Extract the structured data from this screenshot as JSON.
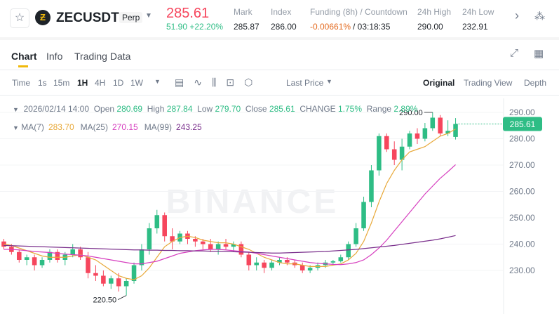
{
  "header": {
    "symbol": "ZECUSDT",
    "contract": "Perp",
    "price": "285.61",
    "change": "51.90 +22.20%",
    "stats": [
      {
        "label": "Mark",
        "value": "285.87"
      },
      {
        "label": "Index",
        "value": "286.00"
      },
      {
        "label": "Funding (8h) / Countdown",
        "value": "-0.00661%",
        "extra": "/ 03:18:35"
      },
      {
        "label": "24h High",
        "value": "290.00"
      },
      {
        "label": "24h Low",
        "value": "232.91"
      }
    ]
  },
  "tabs": [
    "Chart",
    "Info",
    "Trading Data"
  ],
  "toolbar": {
    "intervals": [
      "Time",
      "1s",
      "15m",
      "1H",
      "4H",
      "1D",
      "1W"
    ],
    "price_type": "Last Price",
    "views": [
      "Original",
      "Trading View",
      "Depth"
    ]
  },
  "info": {
    "date": "2026/02/14 14:00",
    "fields": [
      {
        "label": "Open",
        "value": "280.69"
      },
      {
        "label": "High",
        "value": "287.84"
      },
      {
        "label": "Low",
        "value": "279.70"
      },
      {
        "label": "Close",
        "value": "285.61"
      },
      {
        "label": "CHANGE",
        "value": "1.75%"
      },
      {
        "label": "Range",
        "value": "2.89%"
      }
    ]
  },
  "chart_data": {
    "type": "candlestick",
    "watermark": "BINANCE",
    "up_color": "#2ebd85",
    "down_color": "#f6465d",
    "open": [
      241,
      239,
      237,
      234,
      235,
      232,
      234,
      237,
      234,
      236,
      238,
      235,
      229,
      228,
      225,
      227,
      224,
      226,
      232,
      238,
      246,
      251,
      243,
      241,
      244,
      242,
      241,
      240,
      238,
      240,
      239,
      240,
      236,
      232,
      233,
      231,
      233,
      234,
      233,
      232,
      230,
      231,
      232,
      233,
      233.5,
      235,
      240,
      246,
      256,
      268,
      281,
      276,
      272,
      277,
      282,
      280,
      284,
      288,
      282,
      280.69
    ],
    "high": [
      242,
      240,
      238,
      236,
      236,
      235,
      238,
      238,
      237,
      240,
      239,
      237,
      232,
      230,
      228,
      229,
      227,
      233,
      240,
      248,
      253,
      252,
      246,
      245,
      245,
      243,
      242,
      242,
      241,
      242,
      241,
      241,
      237,
      235,
      234,
      234,
      235,
      235,
      234,
      233,
      232,
      233,
      234,
      234,
      236,
      241,
      248,
      258,
      270,
      282,
      282,
      279,
      280,
      283,
      284,
      286,
      290,
      289,
      287,
      287.84
    ],
    "low": [
      238,
      236,
      233,
      232,
      230,
      231,
      233,
      233,
      232,
      235,
      234,
      227,
      226,
      224,
      223,
      222,
      220.5,
      225,
      230,
      236,
      244,
      241,
      238,
      240,
      240,
      239,
      238,
      237,
      236,
      238,
      237,
      235,
      230,
      230,
      229,
      230,
      232,
      232,
      231,
      229,
      229,
      230,
      231,
      232,
      233,
      234,
      239,
      245,
      254,
      266,
      275,
      270,
      268,
      276,
      278,
      279,
      283,
      281,
      281,
      279.7
    ],
    "close": [
      239,
      237,
      234,
      235,
      232,
      234,
      237,
      234,
      236,
      238,
      235,
      229,
      228,
      225,
      227,
      224,
      226,
      232,
      238,
      246,
      251,
      243,
      241,
      244,
      242,
      241,
      240,
      238,
      240,
      239,
      240,
      236,
      232,
      233,
      231,
      233,
      234,
      233,
      232,
      230,
      231,
      232,
      233,
      233.5,
      235,
      240,
      246,
      256,
      268,
      281,
      276,
      272,
      277,
      282,
      280,
      284,
      288,
      282,
      283,
      285.61
    ],
    "series": [
      {
        "name": "MA(7)",
        "color": "#e8a93a",
        "last_label": "283.70",
        "values": [
          240,
          239.5,
          238.5,
          237.5,
          236.5,
          235.5,
          235,
          235,
          235,
          235.5,
          236,
          235,
          234,
          232,
          230,
          228,
          227,
          226.5,
          228,
          231,
          235,
          239,
          241,
          242.5,
          243,
          242.5,
          241.5,
          241,
          240.5,
          240.5,
          240,
          239,
          238,
          236.5,
          235,
          234,
          233,
          232.5,
          232.5,
          232,
          231.5,
          231.5,
          231.5,
          232,
          232.5,
          234,
          236.5,
          241,
          248,
          256,
          263,
          268,
          272,
          275,
          276,
          277,
          279,
          281,
          282,
          283.7
        ]
      },
      {
        "name": "MA(25)",
        "color": "#d63fbf",
        "last_label": "270.15",
        "values": [
          238,
          238,
          237.8,
          237.5,
          237.2,
          237,
          236.8,
          236.5,
          236.2,
          236,
          235.8,
          235.5,
          235,
          234.5,
          234,
          233.5,
          233,
          232.5,
          232.5,
          233,
          233.5,
          234.5,
          235.5,
          236.5,
          237,
          237.5,
          237.8,
          238,
          238,
          237.8,
          237.5,
          237.2,
          237,
          236.5,
          236,
          235.5,
          235,
          234.5,
          234,
          233.5,
          233,
          232.7,
          232.5,
          232.3,
          232.2,
          232.5,
          233,
          234,
          236,
          238.5,
          241.5,
          245,
          248.5,
          252,
          255.5,
          259,
          262,
          265,
          267.5,
          270.15
        ]
      },
      {
        "name": "MA(99)",
        "color": "#7a2f8c",
        "last_label": "243.25",
        "values": [
          239.5,
          239.4,
          239.3,
          239.2,
          239.1,
          239.0,
          238.9,
          238.8,
          238.7,
          238.6,
          238.5,
          238.4,
          238.3,
          238.2,
          238.1,
          238.0,
          237.9,
          237.8,
          237.8,
          237.7,
          237.7,
          237.6,
          237.6,
          237.5,
          237.5,
          237.4,
          237.4,
          237.3,
          237.3,
          237.2,
          237.1,
          237.0,
          236.9,
          236.8,
          236.7,
          236.6,
          236.6,
          236.7,
          236.8,
          236.9,
          237.0,
          237.1,
          237.2,
          237.4,
          237.6,
          237.8,
          238.0,
          238.3,
          238.6,
          238.9,
          239.2,
          239.5,
          239.9,
          240.3,
          240.7,
          241.1,
          241.5,
          242.0,
          242.6,
          243.25
        ]
      }
    ],
    "last_price_label": "285.61",
    "annotations": [
      {
        "value": 290,
        "label": "290.00"
      },
      {
        "value": 220.5,
        "label": "220.50"
      }
    ],
    "ylim": [
      214,
      294
    ],
    "yticks": [
      {
        "value": 230,
        "label": "230.00"
      },
      {
        "value": 240,
        "label": "240.00"
      },
      {
        "value": 250,
        "label": "250.00"
      },
      {
        "value": 260,
        "label": "260.00"
      },
      {
        "value": 270,
        "label": "270.00"
      },
      {
        "value": 280,
        "label": "280.00"
      },
      {
        "value": 290,
        "label": "290.00"
      }
    ],
    "grid": true
  }
}
